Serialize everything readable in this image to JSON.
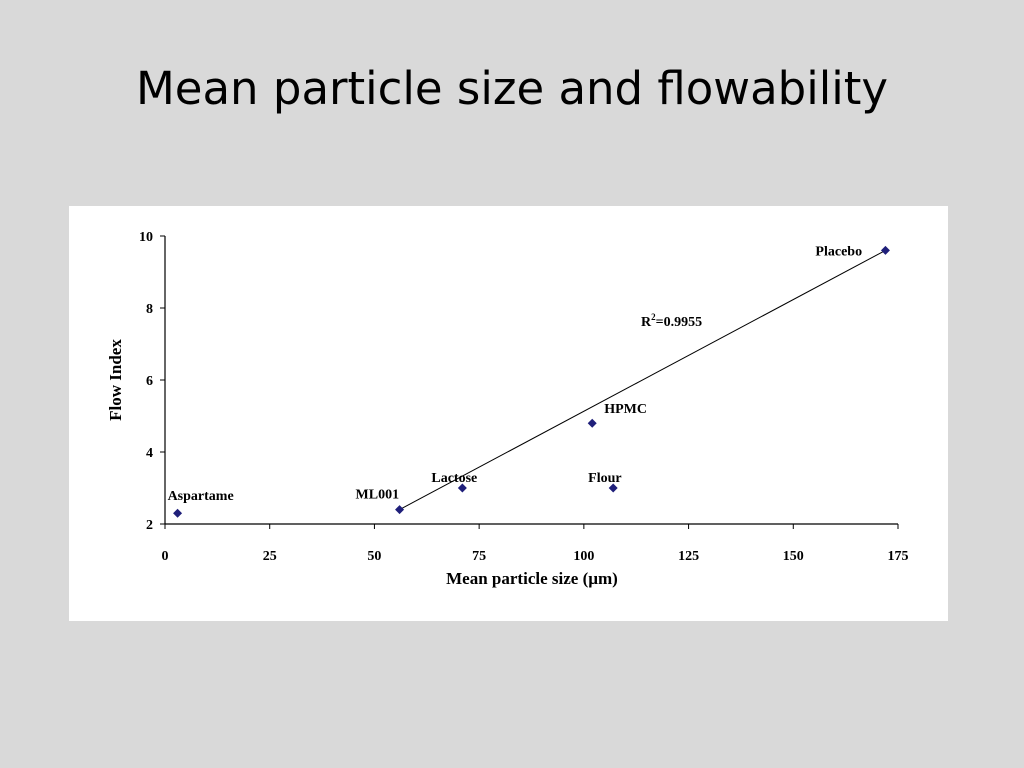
{
  "slide": {
    "title": "Mean particle size and flowability"
  },
  "chart_data": {
    "type": "scatter",
    "xlabel": "Mean particle size (µm)",
    "ylabel": "Flow Index",
    "xlim": [
      0,
      175
    ],
    "ylim": [
      2,
      10
    ],
    "x_ticks": [
      "0",
      "25",
      "50",
      "75",
      "100",
      "125",
      "150",
      "175"
    ],
    "y_ticks": [
      "2",
      "4",
      "6",
      "8",
      "10"
    ],
    "points": [
      {
        "label": "Aspartame",
        "x": 3,
        "y": 2.3
      },
      {
        "label": "ML001",
        "x": 56,
        "y": 2.4
      },
      {
        "label": "Lactose",
        "x": 71,
        "y": 3.0
      },
      {
        "label": "HPMC",
        "x": 102,
        "y": 4.8
      },
      {
        "label": "Flour",
        "x": 107,
        "y": 3.0
      },
      {
        "label": "Placebo",
        "x": 172,
        "y": 9.6
      }
    ],
    "trendline": {
      "x": [
        56,
        172
      ],
      "y": [
        2.4,
        9.6
      ]
    },
    "annotation": {
      "text_main": "R",
      "text_sup": "2",
      "text_rest": "=0.9955"
    },
    "marker_color": "#1f1f7a",
    "grid": false
  }
}
